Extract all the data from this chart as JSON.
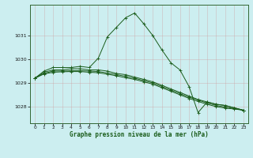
{
  "xlabel": "Graphe pression niveau de la mer (hPa)",
  "background_color": "#cceef0",
  "grid_color": "#aacccc",
  "line_color": "#1a5c1a",
  "xlim": [
    -0.5,
    23.5
  ],
  "ylim": [
    1027.3,
    1032.3
  ],
  "yticks": [
    1028,
    1029,
    1030,
    1031
  ],
  "xticks": [
    0,
    1,
    2,
    3,
    4,
    5,
    6,
    7,
    8,
    9,
    10,
    11,
    12,
    13,
    14,
    15,
    16,
    17,
    18,
    19,
    20,
    21,
    22,
    23
  ],
  "series": [
    {
      "x": [
        0,
        1,
        2,
        3,
        4,
        5,
        6,
        7,
        8,
        9,
        10,
        11,
        12,
        13,
        14,
        15,
        16,
        17,
        18,
        19,
        20,
        21,
        22,
        23
      ],
      "y": [
        1029.2,
        1029.5,
        1029.65,
        1029.65,
        1029.65,
        1029.7,
        1029.65,
        1030.05,
        1030.95,
        1031.35,
        1031.75,
        1031.95,
        1031.5,
        1031.0,
        1030.4,
        1029.85,
        1029.55,
        1028.85,
        1027.75,
        1028.2,
        1028.1,
        1028.05,
        1027.95,
        1027.85
      ]
    },
    {
      "x": [
        0,
        1,
        2,
        3,
        4,
        5,
        6,
        7,
        8,
        9,
        10,
        11,
        12,
        13,
        14,
        15,
        16,
        17,
        18,
        19,
        20,
        21,
        22,
        23
      ],
      "y": [
        1029.2,
        1029.45,
        1029.55,
        1029.55,
        1029.6,
        1029.6,
        1029.55,
        1029.55,
        1029.5,
        1029.4,
        1029.35,
        1029.25,
        1029.15,
        1029.05,
        1028.9,
        1028.75,
        1028.6,
        1028.45,
        1028.3,
        1028.2,
        1028.1,
        1028.05,
        1027.95,
        1027.85
      ]
    },
    {
      "x": [
        0,
        1,
        2,
        3,
        4,
        5,
        6,
        7,
        8,
        9,
        10,
        11,
        12,
        13,
        14,
        15,
        16,
        17,
        18,
        19,
        20,
        21,
        22,
        23
      ],
      "y": [
        1029.2,
        1029.4,
        1029.5,
        1029.5,
        1029.52,
        1029.52,
        1029.5,
        1029.48,
        1029.42,
        1029.35,
        1029.28,
        1029.2,
        1029.1,
        1029.0,
        1028.85,
        1028.7,
        1028.55,
        1028.4,
        1028.28,
        1028.15,
        1028.05,
        1027.98,
        1027.92,
        1027.85
      ]
    },
    {
      "x": [
        0,
        1,
        2,
        3,
        4,
        5,
        6,
        7,
        8,
        9,
        10,
        11,
        12,
        13,
        14,
        15,
        16,
        17,
        18,
        19,
        20,
        21,
        22,
        23
      ],
      "y": [
        1029.2,
        1029.38,
        1029.45,
        1029.47,
        1029.48,
        1029.48,
        1029.45,
        1029.43,
        1029.37,
        1029.3,
        1029.22,
        1029.15,
        1029.05,
        1028.95,
        1028.8,
        1028.65,
        1028.5,
        1028.35,
        1028.22,
        1028.1,
        1028.0,
        1027.94,
        1027.9,
        1027.85
      ]
    }
  ]
}
